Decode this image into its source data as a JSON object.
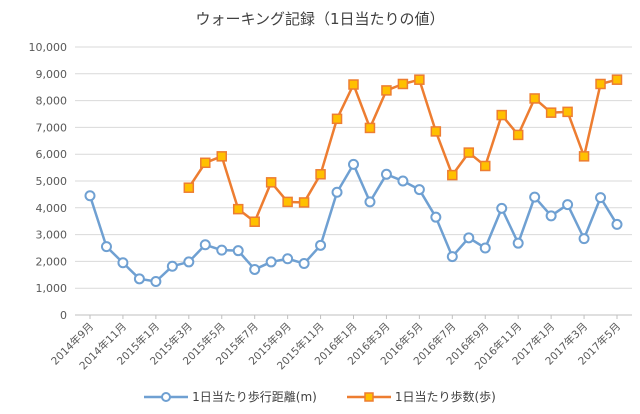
{
  "chart_data": {
    "type": "line",
    "title": "ウォーキング記録（1日当たりの値）",
    "categories": [
      "2014年9月",
      "2014年10月",
      "2014年11月",
      "2014年12月",
      "2015年1月",
      "2015年2月",
      "2015年3月",
      "2015年4月",
      "2015年5月",
      "2015年6月",
      "2015年7月",
      "2015年8月",
      "2015年9月",
      "2015年10月",
      "2015年11月",
      "2015年12月",
      "2016年1月",
      "2016年2月",
      "2016年3月",
      "2016年4月",
      "2016年5月",
      "2016年6月",
      "2016年7月",
      "2016年8月",
      "2016年9月",
      "2016年10月",
      "2016年11月",
      "2016年12月",
      "2017年1月",
      "2017年2月",
      "2017年3月",
      "2017年4月",
      "2017年5月"
    ],
    "x_tick_labels": [
      "2014年9月",
      "2014年11月",
      "2015年1月",
      "2015年3月",
      "2015年5月",
      "2015年7月",
      "2015年9月",
      "2015年11月",
      "2016年1月",
      "2016年3月",
      "2016年5月",
      "2016年7月",
      "2016年9月",
      "2016年11月",
      "2017年1月",
      "2017年3月",
      "2017年5月"
    ],
    "y_tick_labels": [
      "0",
      "1,000",
      "2,000",
      "3,000",
      "4,000",
      "5,000",
      "6,000",
      "7,000",
      "8,000",
      "9,000",
      "10,000"
    ],
    "ylim": [
      0,
      10000
    ],
    "grid": true,
    "legend_position": "bottom",
    "series": [
      {
        "name": "1日当たり歩行距離(m)",
        "color": "#6fa0d2",
        "marker": "circle",
        "values": [
          4450,
          2550,
          1950,
          1350,
          1250,
          1820,
          1980,
          2620,
          2420,
          2400,
          1700,
          1980,
          2100,
          1920,
          2600,
          4580,
          5620,
          4220,
          5250,
          5000,
          4680,
          3650,
          2180,
          2880,
          2500,
          3980,
          2680,
          4400,
          3700,
          4120,
          2850,
          4380,
          3380
        ]
      },
      {
        "name": "1日当たり歩数(歩)",
        "color": "#ed7d31",
        "marker": "square",
        "values": [
          null,
          null,
          null,
          null,
          null,
          null,
          4750,
          5680,
          5920,
          3950,
          3480,
          4950,
          4220,
          4200,
          5250,
          7320,
          8600,
          6980,
          8380,
          8620,
          8780,
          6850,
          5220,
          6060,
          5560,
          7460,
          6720,
          8080,
          7550,
          7580,
          5920,
          8620,
          8780
        ]
      }
    ]
  }
}
